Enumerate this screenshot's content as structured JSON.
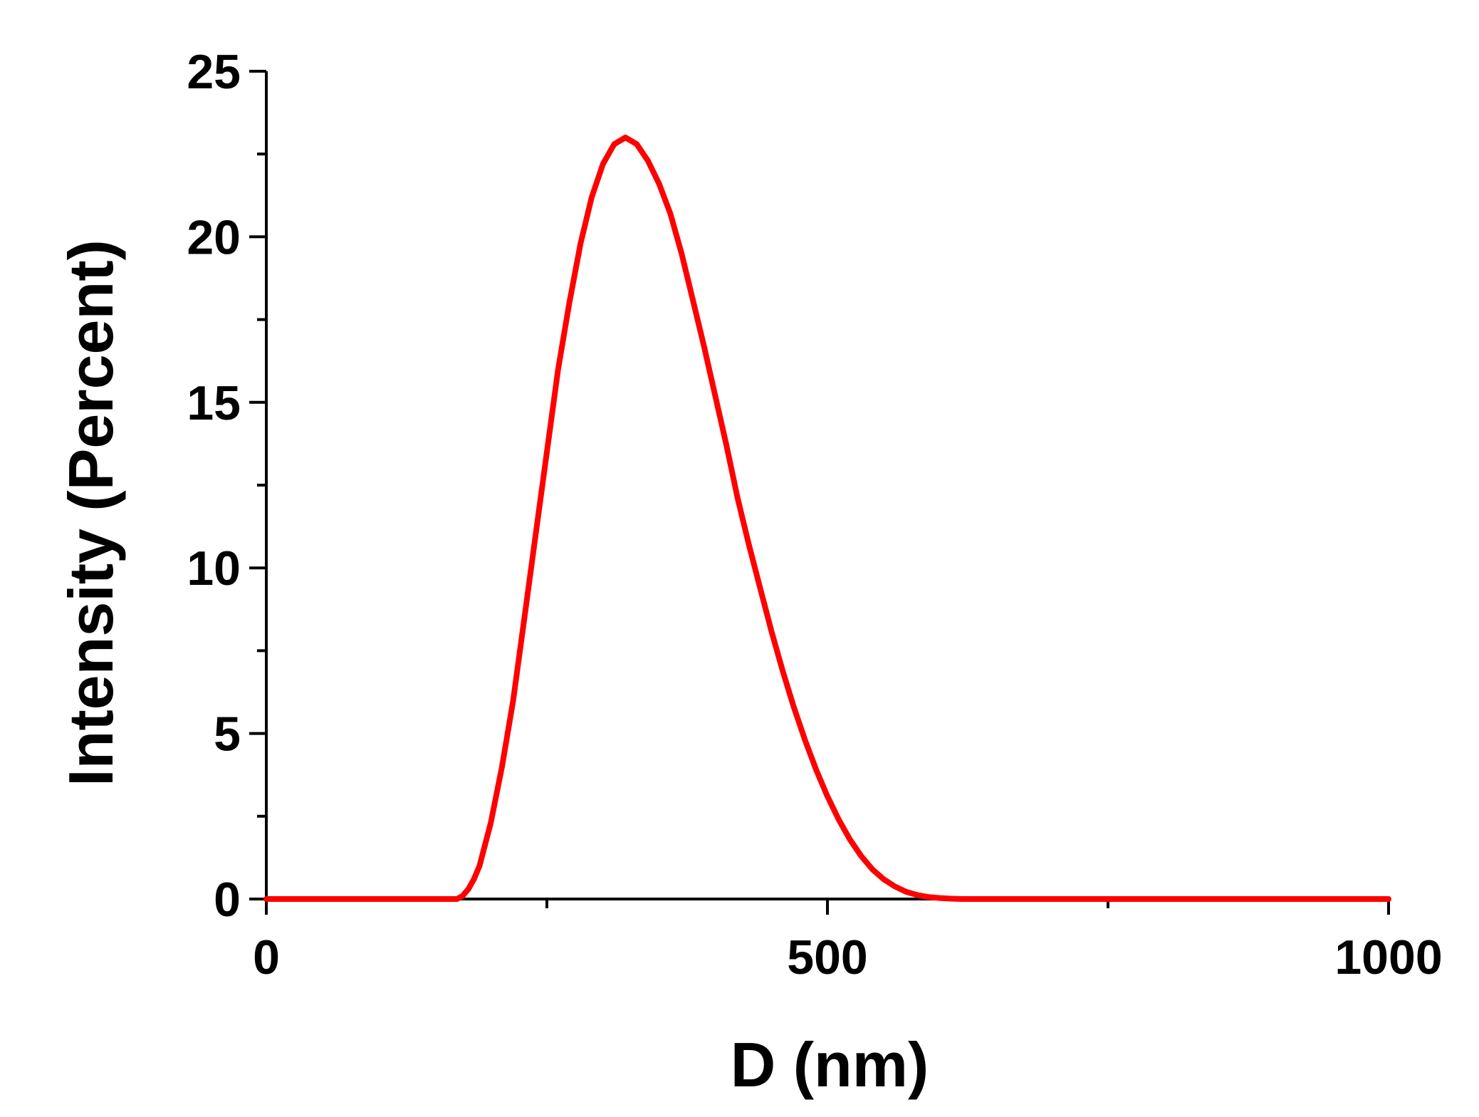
{
  "chart_data": {
    "type": "line",
    "title": "",
    "xlabel": "D (nm)",
    "ylabel": "Intensity (Percent)",
    "xlim": [
      0,
      1000
    ],
    "ylim": [
      0,
      25
    ],
    "x_major_ticks": [
      0,
      500,
      1000
    ],
    "x_minor_ticks": [
      250,
      750
    ],
    "y_major_ticks": [
      0,
      5,
      10,
      15,
      20,
      25
    ],
    "y_minor_ticks": [
      2.5,
      7.5,
      12.5,
      17.5,
      22.5
    ],
    "grid": false,
    "legend": "none",
    "series": [
      {
        "color": "#ff0000",
        "x": [
          0,
          100,
          150,
          170,
          175,
          180,
          185,
          190,
          200,
          210,
          220,
          230,
          240,
          250,
          260,
          270,
          280,
          290,
          300,
          310,
          320,
          330,
          340,
          350,
          360,
          370,
          380,
          390,
          400,
          410,
          420,
          430,
          440,
          450,
          460,
          470,
          480,
          490,
          500,
          510,
          520,
          530,
          540,
          550,
          560,
          570,
          580,
          590,
          600,
          610,
          620,
          630,
          640,
          650,
          660,
          680,
          700,
          800,
          900,
          1000
        ],
        "values": [
          0,
          0,
          0,
          0,
          0.1,
          0.3,
          0.6,
          1.0,
          2.3,
          4.0,
          6.0,
          8.5,
          11.0,
          13.5,
          16.0,
          18.0,
          19.8,
          21.2,
          22.2,
          22.8,
          23.0,
          22.8,
          22.3,
          21.6,
          20.7,
          19.5,
          18.1,
          16.7,
          15.2,
          13.7,
          12.1,
          10.7,
          9.4,
          8.1,
          6.9,
          5.8,
          4.8,
          3.9,
          3.1,
          2.4,
          1.8,
          1.3,
          0.9,
          0.6,
          0.38,
          0.22,
          0.12,
          0.06,
          0.03,
          0.01,
          0,
          0,
          0,
          0,
          0,
          0,
          0,
          0,
          0,
          0
        ]
      }
    ]
  }
}
